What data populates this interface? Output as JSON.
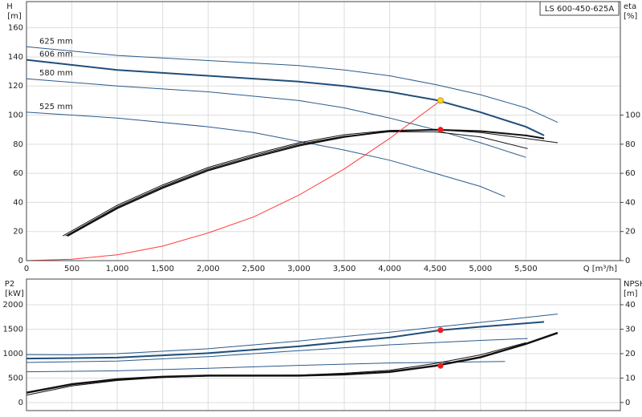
{
  "chart_data": [
    {
      "type": "line",
      "title": "LS 600-450-625A",
      "ylabel": "H",
      "yunit": "[m]",
      "y2label": "eta",
      "y2unit": "[%]",
      "xlabel": "Q [m³/h]",
      "xlim": [
        0,
        6540
      ],
      "xticks": [
        0,
        500,
        {
          "value": 1000,
          "label": "1,000"
        },
        {
          "value": 1500,
          "label": "1,500"
        },
        {
          "value": 2000,
          "label": "2,000"
        },
        {
          "value": 2500,
          "label": "2,500"
        },
        {
          "value": 3000,
          "label": "3,000"
        },
        {
          "value": 3500,
          "label": "3,500"
        },
        {
          "value": 4000,
          "label": "4,000"
        },
        {
          "value": 4500,
          "label": "4,500"
        },
        {
          "value": 5000,
          "label": "5,000"
        },
        {
          "value": 5500,
          "label": "5,500"
        }
      ],
      "xtick_labels": true,
      "ylim": [
        0,
        178
      ],
      "yticks": [
        0,
        20,
        40,
        60,
        80,
        100,
        120,
        140,
        160
      ],
      "y2lim": [
        0,
        178
      ],
      "y2ticks": [
        0,
        20,
        40,
        60,
        80,
        100
      ],
      "grid": true,
      "series": [
        {
          "name": "625 mm",
          "color": "#2b5b8c",
          "width": 1,
          "x": [
            0,
            1000,
            2000,
            3000,
            3500,
            4000,
            4500,
            5000,
            5500,
            5850
          ],
          "values": [
            147,
            141,
            137.5,
            134,
            131,
            127,
            121,
            114,
            105,
            95
          ]
        },
        {
          "name": "606 mm",
          "color": "#1f4e79",
          "width": 2,
          "x": [
            0,
            1000,
            2000,
            3000,
            3500,
            4000,
            4500,
            5000,
            5500,
            5700
          ],
          "values": [
            138,
            131,
            127,
            123,
            120,
            116,
            110.5,
            102,
            92,
            86
          ]
        },
        {
          "name": "580 mm",
          "color": "#2b5b8c",
          "width": 1,
          "x": [
            0,
            1000,
            2000,
            3000,
            3500,
            4000,
            4500,
            5000,
            5500
          ],
          "values": [
            125,
            120,
            116,
            110,
            105,
            98,
            90,
            81,
            71
          ]
        },
        {
          "name": "525 mm",
          "color": "#2b5b8c",
          "width": 1,
          "x": [
            0,
            1000,
            2000,
            2500,
            3000,
            3500,
            4000,
            4500,
            5000,
            5270
          ],
          "values": [
            102,
            98,
            92,
            88,
            82,
            76,
            69,
            60,
            51,
            44
          ]
        },
        {
          "color": "#111111",
          "width": 1,
          "axis": "y2",
          "x": [
            400,
            1000,
            1500,
            2000,
            2500,
            3000,
            3500,
            4000,
            4500,
            5000,
            5500,
            5850
          ],
          "values": [
            17,
            38,
            52,
            64,
            73,
            81,
            86.5,
            89.5,
            90,
            88,
            84,
            81
          ]
        },
        {
          "color": "#111111",
          "width": 2,
          "axis": "y2",
          "x": [
            450,
            1000,
            1500,
            2000,
            2500,
            3000,
            3500,
            4000,
            4500,
            5000,
            5500,
            5700
          ],
          "values": [
            17,
            36,
            50,
            62,
            71,
            79,
            85,
            89,
            90,
            89,
            86,
            84
          ]
        },
        {
          "color": "#111111",
          "width": 1,
          "axis": "y2",
          "x": [
            430,
            1000,
            1500,
            2000,
            2500,
            3000,
            3500,
            4000,
            4500,
            5000,
            5520
          ],
          "values": [
            17,
            37,
            51,
            63,
            72,
            80,
            85.5,
            88.5,
            88.5,
            85,
            77
          ]
        },
        {
          "color": "#ff3b3b",
          "width": 1,
          "x": [
            0,
            500,
            1000,
            1500,
            2000,
            2500,
            3000,
            3500,
            4000,
            4560
          ],
          "values": [
            0,
            1,
            4,
            10,
            19,
            30,
            45,
            63,
            84,
            110
          ]
        }
      ],
      "markers": [
        {
          "x": 4560,
          "y": 110,
          "color": "#ffd22e"
        },
        {
          "x": 4560,
          "y": 90,
          "color": "#ee1c1c",
          "axis": "y2"
        }
      ]
    },
    {
      "type": "line",
      "ylabel": "P2",
      "yunit": "[kW]",
      "y2label": "NPSH",
      "y2unit": "[m]",
      "xlim": [
        0,
        6540
      ],
      "xticks": [
        0,
        500,
        1000,
        1500,
        2000,
        2500,
        3000,
        3500,
        4000,
        4500,
        5000,
        5500
      ],
      "xtick_labels": false,
      "ylim": [
        -164,
        2525
      ],
      "yticks": [
        0,
        500,
        1000,
        1500,
        2000
      ],
      "y2lim": [
        -3.3,
        50.5
      ],
      "y2ticks": [
        0,
        10,
        20,
        30,
        40
      ],
      "grid": true,
      "series": [
        {
          "color": "#2b5b8c",
          "width": 1,
          "x": [
            0,
            500,
            1000,
            2000,
            3000,
            4000,
            5000,
            5850
          ],
          "values": [
            980,
            975,
            1000,
            1100,
            1260,
            1440,
            1640,
            1810
          ]
        },
        {
          "color": "#1f4e79",
          "width": 2,
          "x": [
            0,
            1000,
            2000,
            3000,
            4000,
            4560,
            5000,
            5700
          ],
          "values": [
            900,
            920,
            1010,
            1150,
            1330,
            1480,
            1550,
            1650
          ]
        },
        {
          "color": "#2b5b8c",
          "width": 1,
          "x": [
            0,
            1000,
            2000,
            3000,
            4000,
            5000,
            5520
          ],
          "values": [
            820,
            850,
            940,
            1060,
            1180,
            1270,
            1310
          ]
        },
        {
          "color": "#2b5b8c",
          "width": 1,
          "x": [
            0,
            1000,
            2000,
            3000,
            4000,
            5270
          ],
          "values": [
            630,
            650,
            700,
            760,
            810,
            840
          ]
        },
        {
          "color": "#111111",
          "width": 2.5,
          "axis": "y2",
          "x": [
            0,
            500,
            1000,
            1500,
            2000,
            3000,
            3500,
            4000,
            4500,
            5000,
            5500,
            5850
          ],
          "values": [
            4,
            7.5,
            9.5,
            10.5,
            11,
            11,
            11.5,
            12.5,
            15,
            18.5,
            24,
            28.5
          ]
        },
        {
          "color": "#111111",
          "width": 1,
          "axis": "y2",
          "x": [
            0,
            500,
            1000,
            1500,
            2000,
            3000,
            3500,
            4000,
            4500,
            5000,
            5500
          ],
          "values": [
            3,
            6.8,
            9,
            10.2,
            10.8,
            11.2,
            12,
            13.2,
            16,
            19.5,
            24.5
          ]
        }
      ],
      "markers": [
        {
          "x": 4560,
          "y": 1480,
          "color": "#ee1c1c"
        },
        {
          "x": 4560,
          "y": 15,
          "color": "#ee1c1c",
          "axis": "y2"
        }
      ]
    }
  ]
}
